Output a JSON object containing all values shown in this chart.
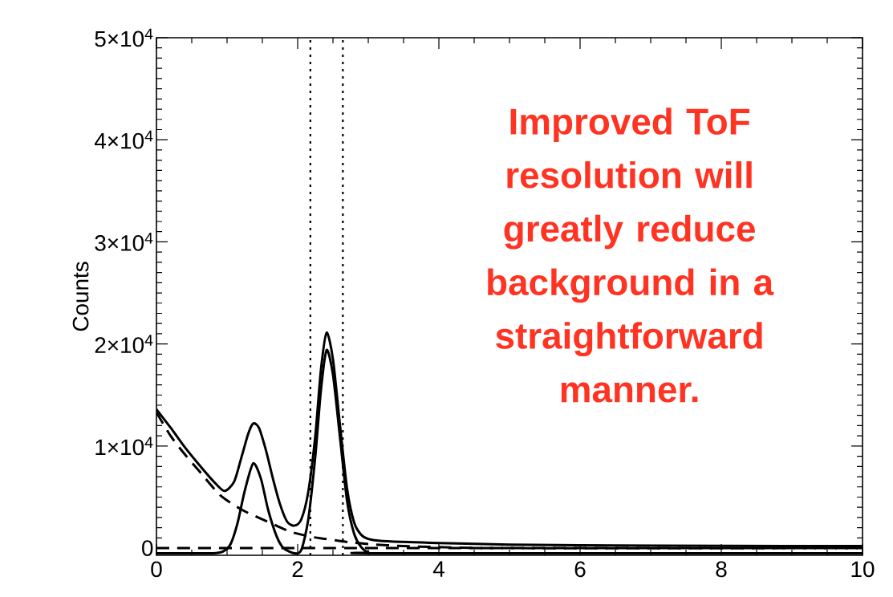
{
  "chart_data": {
    "type": "line",
    "ylabel": "Counts",
    "annotations": [
      "Improved ToF resolution will greatly reduce background in a straightforward manner."
    ],
    "xlim": [
      0,
      10
    ],
    "xticks": [
      0,
      2,
      4,
      6,
      8,
      10
    ],
    "ylim": [
      -700,
      50000
    ],
    "yticks": [
      {
        "value": 0,
        "label": "0"
      },
      {
        "value": 10000,
        "label": "1×10$^{4}$"
      },
      {
        "value": 20000,
        "label": "2×10$^{4}$"
      },
      {
        "value": 30000,
        "label": "3×10$^{4}$"
      },
      {
        "value": 40000,
        "label": "4×10$^{4}$"
      },
      {
        "value": 50000,
        "label": "5×10$^{4}$"
      }
    ],
    "grid": false,
    "ref_lines": [
      {
        "axis": "x",
        "value": 2.18,
        "line_style": "dotted",
        "color": "#000000"
      },
      {
        "axis": "x",
        "value": 2.64,
        "line_style": "dotted",
        "color": "#000000"
      }
    ],
    "series": [
      {
        "color": "#000000",
        "line_style": "solid",
        "x": [
          0,
          0.2,
          0.4,
          0.6,
          0.8,
          0.96,
          1.1,
          1.2,
          1.3,
          1.37,
          1.45,
          1.55,
          1.65,
          1.75,
          1.85,
          1.95,
          2.05,
          2.15,
          2.25,
          2.33,
          2.41,
          2.5,
          2.6,
          2.7,
          2.8,
          2.9,
          3.0,
          3.2,
          4,
          5,
          6,
          8,
          10
        ],
        "values": [
          13600,
          11800,
          9900,
          8200,
          6600,
          5600,
          6500,
          8800,
          11200,
          12200,
          11800,
          9600,
          6800,
          4300,
          2600,
          2200,
          2800,
          5500,
          11000,
          17500,
          21100,
          18500,
          12000,
          5800,
          2500,
          1300,
          900,
          700,
          500,
          350,
          280,
          220,
          200
        ]
      },
      {
        "color": "#000000",
        "line_style": "solid",
        "x": [
          0,
          0.8,
          0.95,
          1.05,
          1.15,
          1.25,
          1.37,
          1.48,
          1.58,
          1.7,
          1.8,
          1.95,
          2.05,
          2.15,
          2.25,
          2.33,
          2.41,
          2.5,
          2.6,
          2.7,
          2.8,
          2.9,
          3.0,
          3.2,
          10
        ],
        "values": [
          -500,
          -500,
          -300,
          400,
          2500,
          5600,
          8300,
          6800,
          3800,
          1200,
          0,
          -500,
          -200,
          2800,
          9000,
          15500,
          19400,
          17000,
          10800,
          4600,
          1400,
          100,
          -400,
          -500,
          -500
        ]
      },
      {
        "color": "#000000",
        "line_style": "dashed",
        "x": [
          0,
          0.2,
          0.4,
          0.6,
          0.9,
          1.2,
          1.44,
          1.7,
          1.9,
          2.2,
          2.4,
          2.7,
          3.0,
          3.5,
          4,
          5,
          10
        ],
        "values": [
          13300,
          11000,
          9200,
          7600,
          5200,
          3800,
          3000,
          2200,
          1600,
          1100,
          900,
          600,
          400,
          200,
          100,
          0,
          0
        ]
      },
      {
        "color": "#000000",
        "line_style": "dashed",
        "x": [
          0,
          10
        ],
        "values": [
          0,
          0
        ]
      }
    ]
  }
}
